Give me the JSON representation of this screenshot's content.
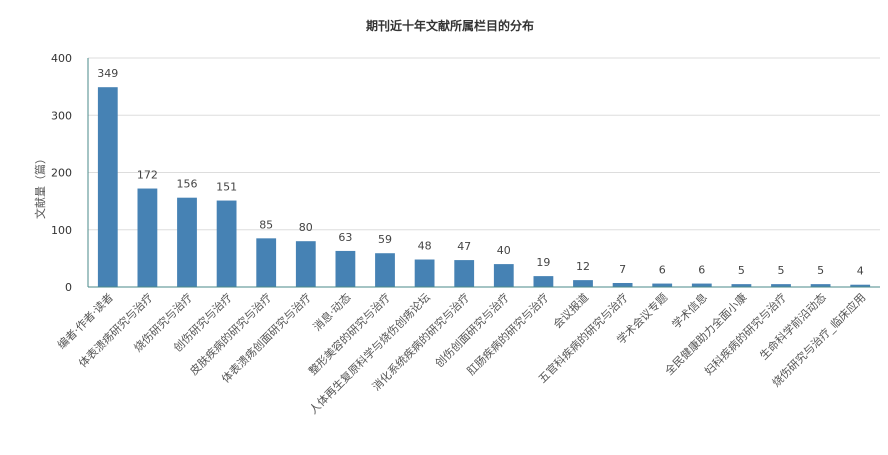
{
  "chart_data": {
    "type": "bar",
    "title": "期刊近十年文献所属栏目的分布",
    "ylabel": "文献量（篇）",
    "xlabel": "",
    "ylim": [
      0,
      400
    ],
    "yticks": [
      0,
      100,
      200,
      300,
      400
    ],
    "grid": true,
    "bar_color": "#4682b4",
    "categories": [
      "编者·作者·读者",
      "体表溃疡研究与治疗",
      "烧伤研究与治疗",
      "创伤研究与治疗",
      "皮肤疾病的研究与治疗",
      "体表溃疡创面研究与治疗",
      "消息·动态",
      "整形美容的研究与治疗",
      "人体再生复原科学与烧伤创疡论坛",
      "消化系统疾病的研究与治疗",
      "创伤创面研究与治疗",
      "肛肠疾病的研究与治疗",
      "会议报道",
      "五官科疾病的研究与治疗",
      "学术会议专题",
      "学术信息",
      "全民健康助力全面小康",
      "妇科疾病的研究与治疗",
      "生命科学前沿动态",
      "烧伤研究与治疗_临床应用"
    ],
    "values": [
      349,
      172,
      156,
      151,
      85,
      80,
      63,
      59,
      48,
      47,
      40,
      19,
      12,
      7,
      6,
      6,
      5,
      5,
      5,
      4
    ]
  }
}
